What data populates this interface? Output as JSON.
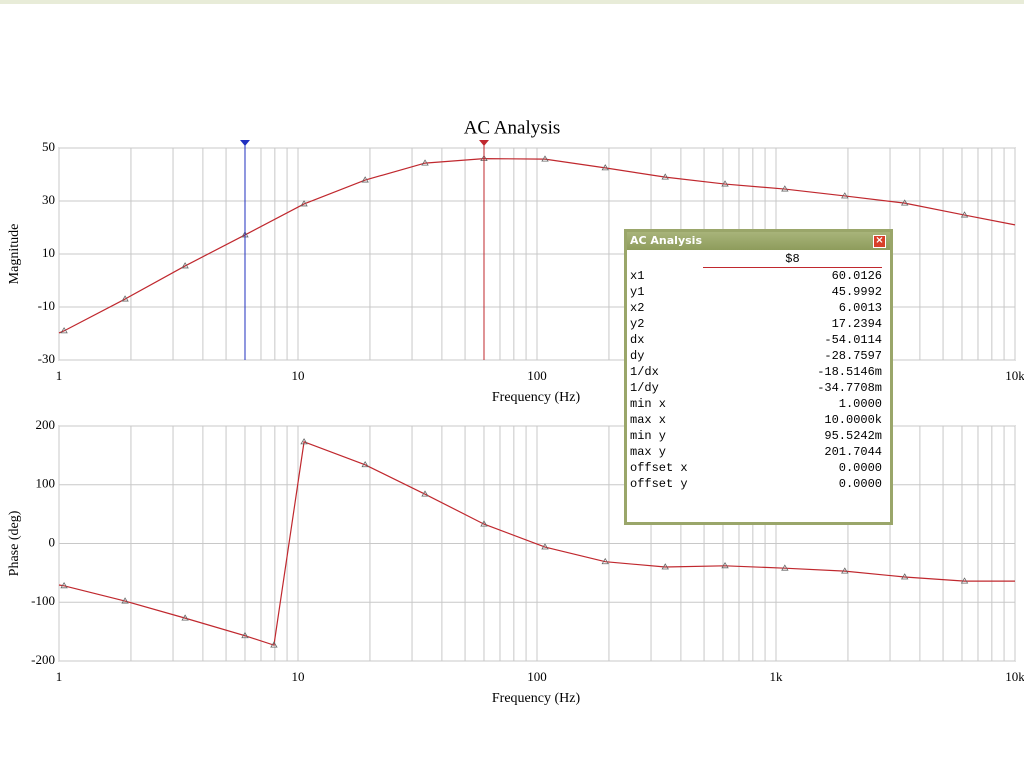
{
  "chart_data": [
    {
      "type": "line",
      "title": "AC Analysis",
      "xlabel": "Frequency (Hz)",
      "ylabel": "Magnitude",
      "xscale": "log",
      "xlim": [
        1,
        10000
      ],
      "xticks": [
        1,
        10,
        100,
        {
          "value": 1000,
          "label": "1k"
        },
        {
          "value": 10000,
          "label": "10k"
        }
      ],
      "ylim": [
        -30,
        50
      ],
      "yticks": [
        50,
        30,
        10,
        -10,
        -30
      ],
      "grid": true,
      "x": [
        1,
        1.05,
        1.89,
        3.37,
        6.0,
        10.6,
        19.1,
        34,
        60,
        108,
        193,
        344,
        612,
        1089,
        1940,
        3455,
        6150,
        10000
      ],
      "series": [
        {
          "name": "$8",
          "color": "#c0282e",
          "values": [
            -19.8,
            -19,
            -7,
            5.5,
            17.2,
            28.9,
            37.9,
            44.3,
            46,
            45.8,
            42.5,
            39,
            36.4,
            34.5,
            31.9,
            29.2,
            24.7,
            21
          ]
        }
      ]
    },
    {
      "type": "line",
      "xlabel": "Frequency (Hz)",
      "ylabel": "Phase (deg)",
      "xscale": "log",
      "xlim": [
        1,
        10000
      ],
      "xticks": [
        1,
        10,
        100,
        {
          "value": 1000,
          "label": "1k"
        },
        {
          "value": 10000,
          "label": "10k"
        }
      ],
      "ylim": [
        -200,
        200
      ],
      "yticks": [
        200,
        100,
        0,
        -100,
        -200
      ],
      "grid": true,
      "x": [
        1,
        1.05,
        1.89,
        3.37,
        6.0,
        7.93,
        10.6,
        19.1,
        34,
        60,
        108,
        193,
        344,
        612,
        1089,
        1940,
        3455,
        6150,
        10000
      ],
      "series": [
        {
          "color": "#c0282e",
          "values": [
            -70.6,
            -72,
            -98,
            -127,
            -157,
            -173,
            173,
            134,
            84,
            33,
            -6,
            -31,
            -40,
            -38,
            -42,
            -47,
            -57,
            -64,
            -64
          ]
        }
      ]
    }
  ],
  "cursor_panel": {
    "title": "AC Analysis",
    "rows": [
      {
        "label": "x1",
        "value": "60.0126"
      },
      {
        "label": "y1",
        "value": "45.9992"
      },
      {
        "label": "x2",
        "value": "6.0013"
      },
      {
        "label": "y2",
        "value": "17.2394"
      },
      {
        "label": "dx",
        "value": "-54.0114"
      },
      {
        "label": "dy",
        "value": "-28.7597"
      },
      {
        "label": "1/dx",
        "value": "-18.5146m"
      },
      {
        "label": "1/dy",
        "value": "-34.7708m"
      },
      {
        "label": "min x",
        "value": "1.0000"
      },
      {
        "label": "max x",
        "value": "10.0000k"
      },
      {
        "label": "min y",
        "value": "95.5242m"
      },
      {
        "label": "max y",
        "value": "201.7044"
      },
      {
        "label": "offset x",
        "value": "0.0000"
      },
      {
        "label": "offset y",
        "value": "0.0000"
      }
    ]
  }
}
